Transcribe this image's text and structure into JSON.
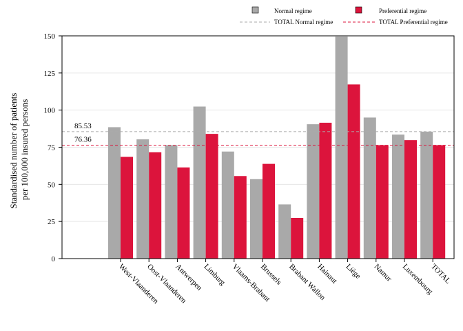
{
  "chart_data": {
    "type": "bar",
    "title": "",
    "ylabel": [
      "Standardised number of patients",
      "per 100,000 insured persons"
    ],
    "xlabel": "",
    "ylim": [
      0,
      150
    ],
    "yticks": [
      0,
      25,
      50,
      75,
      100,
      125,
      150
    ],
    "ytick_labels": [
      "0",
      "25",
      "50",
      "75",
      "100",
      "125",
      "150"
    ],
    "grid": true,
    "legend_position": "top-right",
    "categories": [
      "West-Vlaanderen",
      "Oost-Vlaanderen",
      "Antwerpen",
      "Limburg",
      "Vlaams-Brabant",
      "Brussels",
      "Brabant Wallon",
      "Hainaut",
      "Liège",
      "Namur",
      "Luxembourg",
      "TOTAL"
    ],
    "series": [
      {
        "name": "Normal regime",
        "color": "#a9a9a9",
        "values": [
          88.5,
          80.3,
          76.4,
          102.4,
          72.1,
          53.5,
          36.5,
          90.5,
          149.5,
          95.0,
          83.5,
          85.5
        ]
      },
      {
        "name": "Preferential regime",
        "color": "#dc143c",
        "values": [
          68.5,
          71.6,
          61.4,
          84.0,
          55.6,
          63.8,
          27.4,
          91.5,
          117.3,
          76.4,
          79.8,
          76.4
        ]
      }
    ],
    "reference_lines": [
      {
        "name": "TOTAL Normal regime",
        "value": 85.53,
        "label": "85.53",
        "color": "#aaaaaa"
      },
      {
        "name": "TOTAL Preferential regime",
        "value": 76.36,
        "label": "76.36",
        "color": "#dc143c"
      }
    ]
  }
}
